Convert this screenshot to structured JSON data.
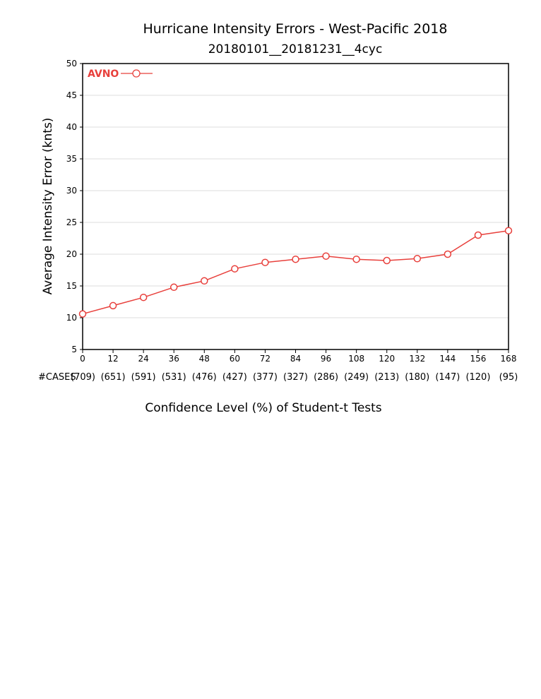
{
  "chart_data": {
    "type": "line",
    "title": "Hurricane Intensity Errors - West-Pacific 2018",
    "subtitle": "20180101__20181231__4cyc",
    "xlabel": "Confidence Level (%) of Student-t Tests",
    "ylabel": "Average Intensity Error (knts)",
    "x": [
      0,
      12,
      24,
      36,
      48,
      60,
      72,
      84,
      96,
      108,
      120,
      132,
      144,
      156,
      168
    ],
    "xlim": [
      0,
      168
    ],
    "ylim": [
      5,
      50
    ],
    "y_ticks": [
      5,
      10,
      15,
      20,
      25,
      30,
      35,
      40,
      45,
      50
    ],
    "grid": true,
    "legend_position": "top-left",
    "cases_label": "#CASES",
    "cases": [
      "(709)",
      "(651)",
      "(591)",
      "(531)",
      "(476)",
      "(427)",
      "(377)",
      "(327)",
      "(286)",
      "(249)",
      "(213)",
      "(180)",
      "(147)",
      "(120)",
      "(95)"
    ],
    "series": [
      {
        "name": "AVNO",
        "color": "#e8403c",
        "values": [
          10.6,
          11.9,
          13.2,
          14.8,
          15.8,
          17.7,
          18.7,
          19.2,
          19.7,
          19.2,
          19.0,
          19.3,
          20.0,
          23.0,
          23.7
        ]
      }
    ]
  }
}
